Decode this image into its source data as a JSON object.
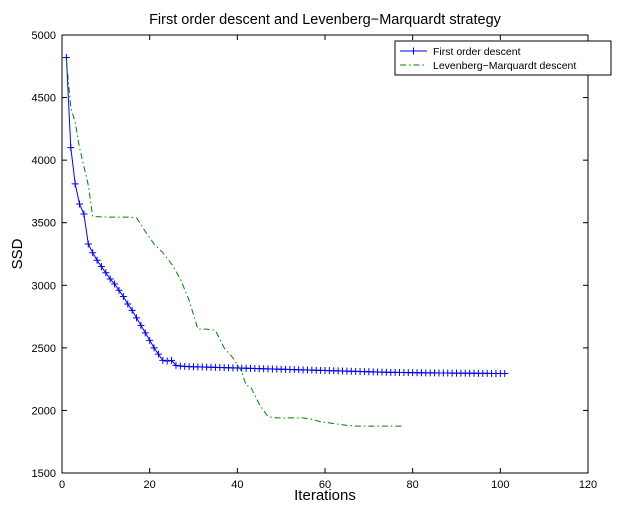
{
  "chart_data": {
    "type": "line",
    "title": "First order descent and Levenberg−Marquardt strategy",
    "xlabel": "Iterations",
    "ylabel": "SSD",
    "xlim": [
      0,
      120
    ],
    "ylim": [
      1500,
      5000
    ],
    "xticks": [
      0,
      20,
      40,
      60,
      80,
      100,
      120
    ],
    "yticks": [
      1500,
      2000,
      2500,
      3000,
      3500,
      4000,
      4500,
      5000
    ],
    "grid": false,
    "legend_position": "top-right",
    "series": [
      {
        "name": "First order descent",
        "color": "#0000ff",
        "line_style": "solid",
        "marker": "plus",
        "x": [
          1,
          2,
          3,
          4,
          5,
          6,
          7,
          8,
          9,
          10,
          11,
          12,
          13,
          14,
          15,
          16,
          17,
          18,
          19,
          20,
          21,
          22,
          23,
          24,
          25,
          26,
          27,
          28,
          29,
          30,
          31,
          32,
          33,
          34,
          35,
          36,
          37,
          38,
          39,
          40,
          41,
          42,
          43,
          44,
          45,
          46,
          47,
          48,
          49,
          50,
          51,
          52,
          53,
          54,
          55,
          56,
          57,
          58,
          59,
          60,
          61,
          62,
          63,
          64,
          65,
          66,
          67,
          68,
          69,
          70,
          71,
          72,
          73,
          74,
          75,
          76,
          77,
          78,
          79,
          80,
          81,
          82,
          83,
          84,
          85,
          86,
          87,
          88,
          89,
          90,
          91,
          92,
          93,
          94,
          95,
          96,
          97,
          98,
          99,
          100,
          101
        ],
        "y": [
          4820,
          4100,
          3810,
          3650,
          3570,
          3330,
          3260,
          3200,
          3150,
          3100,
          3050,
          3010,
          2960,
          2910,
          2850,
          2800,
          2740,
          2680,
          2620,
          2560,
          2500,
          2450,
          2400,
          2395,
          2400,
          2360,
          2355,
          2352,
          2350,
          2349,
          2348,
          2347,
          2346,
          2345,
          2344,
          2343,
          2342,
          2341,
          2340,
          2339,
          2338,
          2337,
          2336,
          2335,
          2334,
          2333,
          2332,
          2331,
          2330,
          2329,
          2328,
          2327,
          2326,
          2325,
          2324,
          2323,
          2322,
          2321,
          2320,
          2319,
          2318,
          2317,
          2316,
          2315,
          2314,
          2313,
          2312,
          2311,
          2310,
          2309,
          2308,
          2307,
          2306,
          2305,
          2304,
          2304,
          2303,
          2303,
          2302,
          2302,
          2301,
          2301,
          2300,
          2300,
          2300,
          2299,
          2299,
          2299,
          2298,
          2298,
          2298,
          2297,
          2297,
          2297,
          2296,
          2296,
          2296,
          2295,
          2295,
          2295,
          2295
        ]
      },
      {
        "name": "Levenberg−Marquardt descent",
        "color": "#008000",
        "line_style": "dashdot",
        "marker": "none",
        "x": [
          1,
          2,
          3,
          4,
          5,
          6,
          7,
          10,
          15,
          17,
          19,
          21,
          23,
          25,
          27,
          29,
          31,
          33,
          35,
          37,
          39,
          41,
          42,
          43,
          45,
          47,
          49,
          51,
          53,
          55,
          57,
          59,
          61,
          63,
          65,
          67,
          69,
          71,
          73,
          75,
          77,
          78
        ],
        "y": [
          4800,
          4420,
          4300,
          4100,
          3950,
          3800,
          3550,
          3545,
          3545,
          3540,
          3430,
          3330,
          3260,
          3170,
          3050,
          2880,
          2650,
          2650,
          2640,
          2500,
          2420,
          2310,
          2200,
          2190,
          2050,
          1950,
          1940,
          1940,
          1940,
          1940,
          1930,
          1910,
          1900,
          1890,
          1880,
          1875,
          1875,
          1875,
          1875,
          1875,
          1875,
          1875
        ]
      }
    ]
  }
}
